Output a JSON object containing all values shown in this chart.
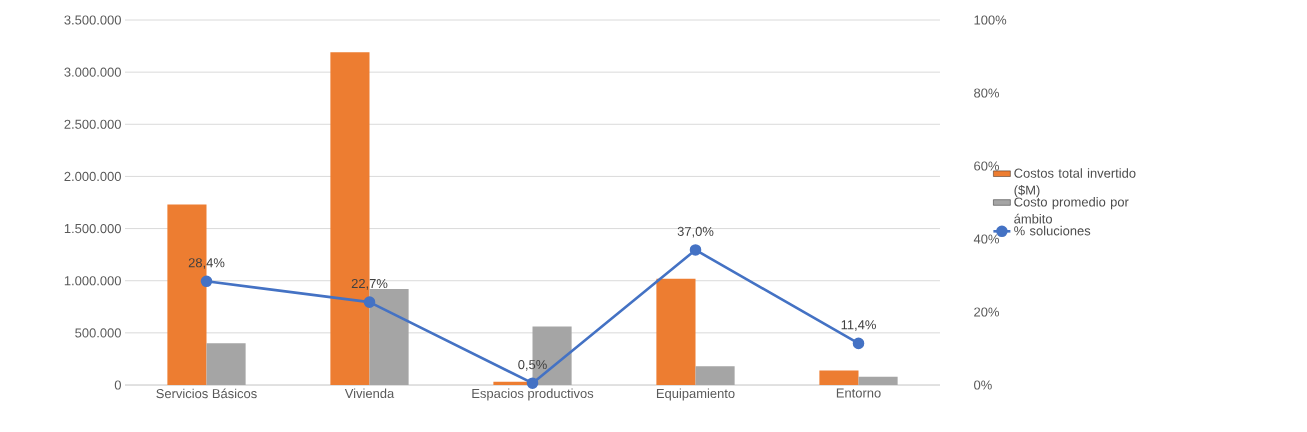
{
  "chart_data": {
    "type": "bar",
    "categories": [
      "Servicios Básicos",
      "Vivienda",
      "Espacios productivos",
      "Equipamiento",
      "Entorno"
    ],
    "series": [
      {
        "name": "Costos total invertido ($M)",
        "color": "#ed7d31",
        "values": [
          1730000,
          3190000,
          30000,
          1020000,
          140000
        ]
      },
      {
        "name": "Costo promedio por ámbito",
        "color": "#a5a5a5",
        "values": [
          400000,
          920000,
          560000,
          180000,
          80000
        ]
      },
      {
        "name": "% soluciones",
        "type": "line",
        "axis": "y2",
        "color": "#4472c4",
        "values": [
          28.4,
          22.7,
          0.5,
          37.0,
          11.4
        ],
        "value_labels": [
          "28,4%",
          "22,7%",
          "0,5%",
          "37,0%",
          "11,4%"
        ]
      }
    ],
    "ylim": [
      0,
      3500000
    ],
    "yticks": [
      {
        "value": 0,
        "label": "0"
      },
      {
        "value": 500000,
        "label": "500.000"
      },
      {
        "value": 1000000,
        "label": "1.000.000"
      },
      {
        "value": 1500000,
        "label": "1.500.000"
      },
      {
        "value": 2000000,
        "label": "2.000.000"
      },
      {
        "value": 2500000,
        "label": "2.500.000"
      },
      {
        "value": 3000000,
        "label": "3.000.000"
      },
      {
        "value": 3500000,
        "label": "3.500.000"
      }
    ],
    "y2lim": [
      0,
      100
    ],
    "y2ticks": [
      {
        "value": 0,
        "label": "0%"
      },
      {
        "value": 20,
        "label": "20%"
      },
      {
        "value": 40,
        "label": "40%"
      },
      {
        "value": 60,
        "label": "60%"
      },
      {
        "value": 80,
        "label": "80%"
      },
      {
        "value": 100,
        "label": "100%"
      }
    ],
    "grid": "y",
    "legend": "right",
    "marker": "circle",
    "line_style": "solid"
  }
}
